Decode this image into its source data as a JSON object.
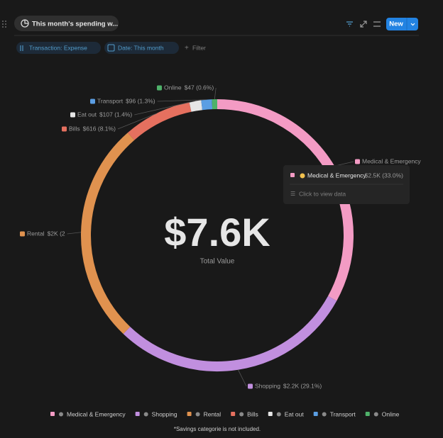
{
  "header": {
    "title": "This month's spending w...",
    "new_button": "New"
  },
  "filters": [
    "Transaction: Expense",
    "Date: This month",
    "Filter"
  ],
  "chart_data": {
    "type": "donut",
    "categories": [
      "Medical & Emergency",
      "Shopping",
      "Rental",
      "Bills",
      "Eat out",
      "Transport",
      "Online"
    ],
    "values": [
      2508,
      2212,
      2014,
      616,
      107,
      96,
      47
    ],
    "value_labels": [
      "$2.5K (33.0%)",
      "$2.2K (29.1%)",
      "$2K (2",
      "$616 (8.1%)",
      "$107 (1.4%)",
      "$96 (1.3%)",
      "$47 (0.6%)"
    ],
    "colors": [
      "#f39bc4",
      "#c18fdf",
      "#e0924f",
      "#e5705f",
      "#e6e6e6",
      "#5b9ee3",
      "#4fb26a"
    ],
    "total_label": "$7.6K",
    "total_caption": "Total Value",
    "tooltip": {
      "category": 0,
      "action": "Click to view data"
    },
    "footnote": "*Savings categorie is not included."
  }
}
